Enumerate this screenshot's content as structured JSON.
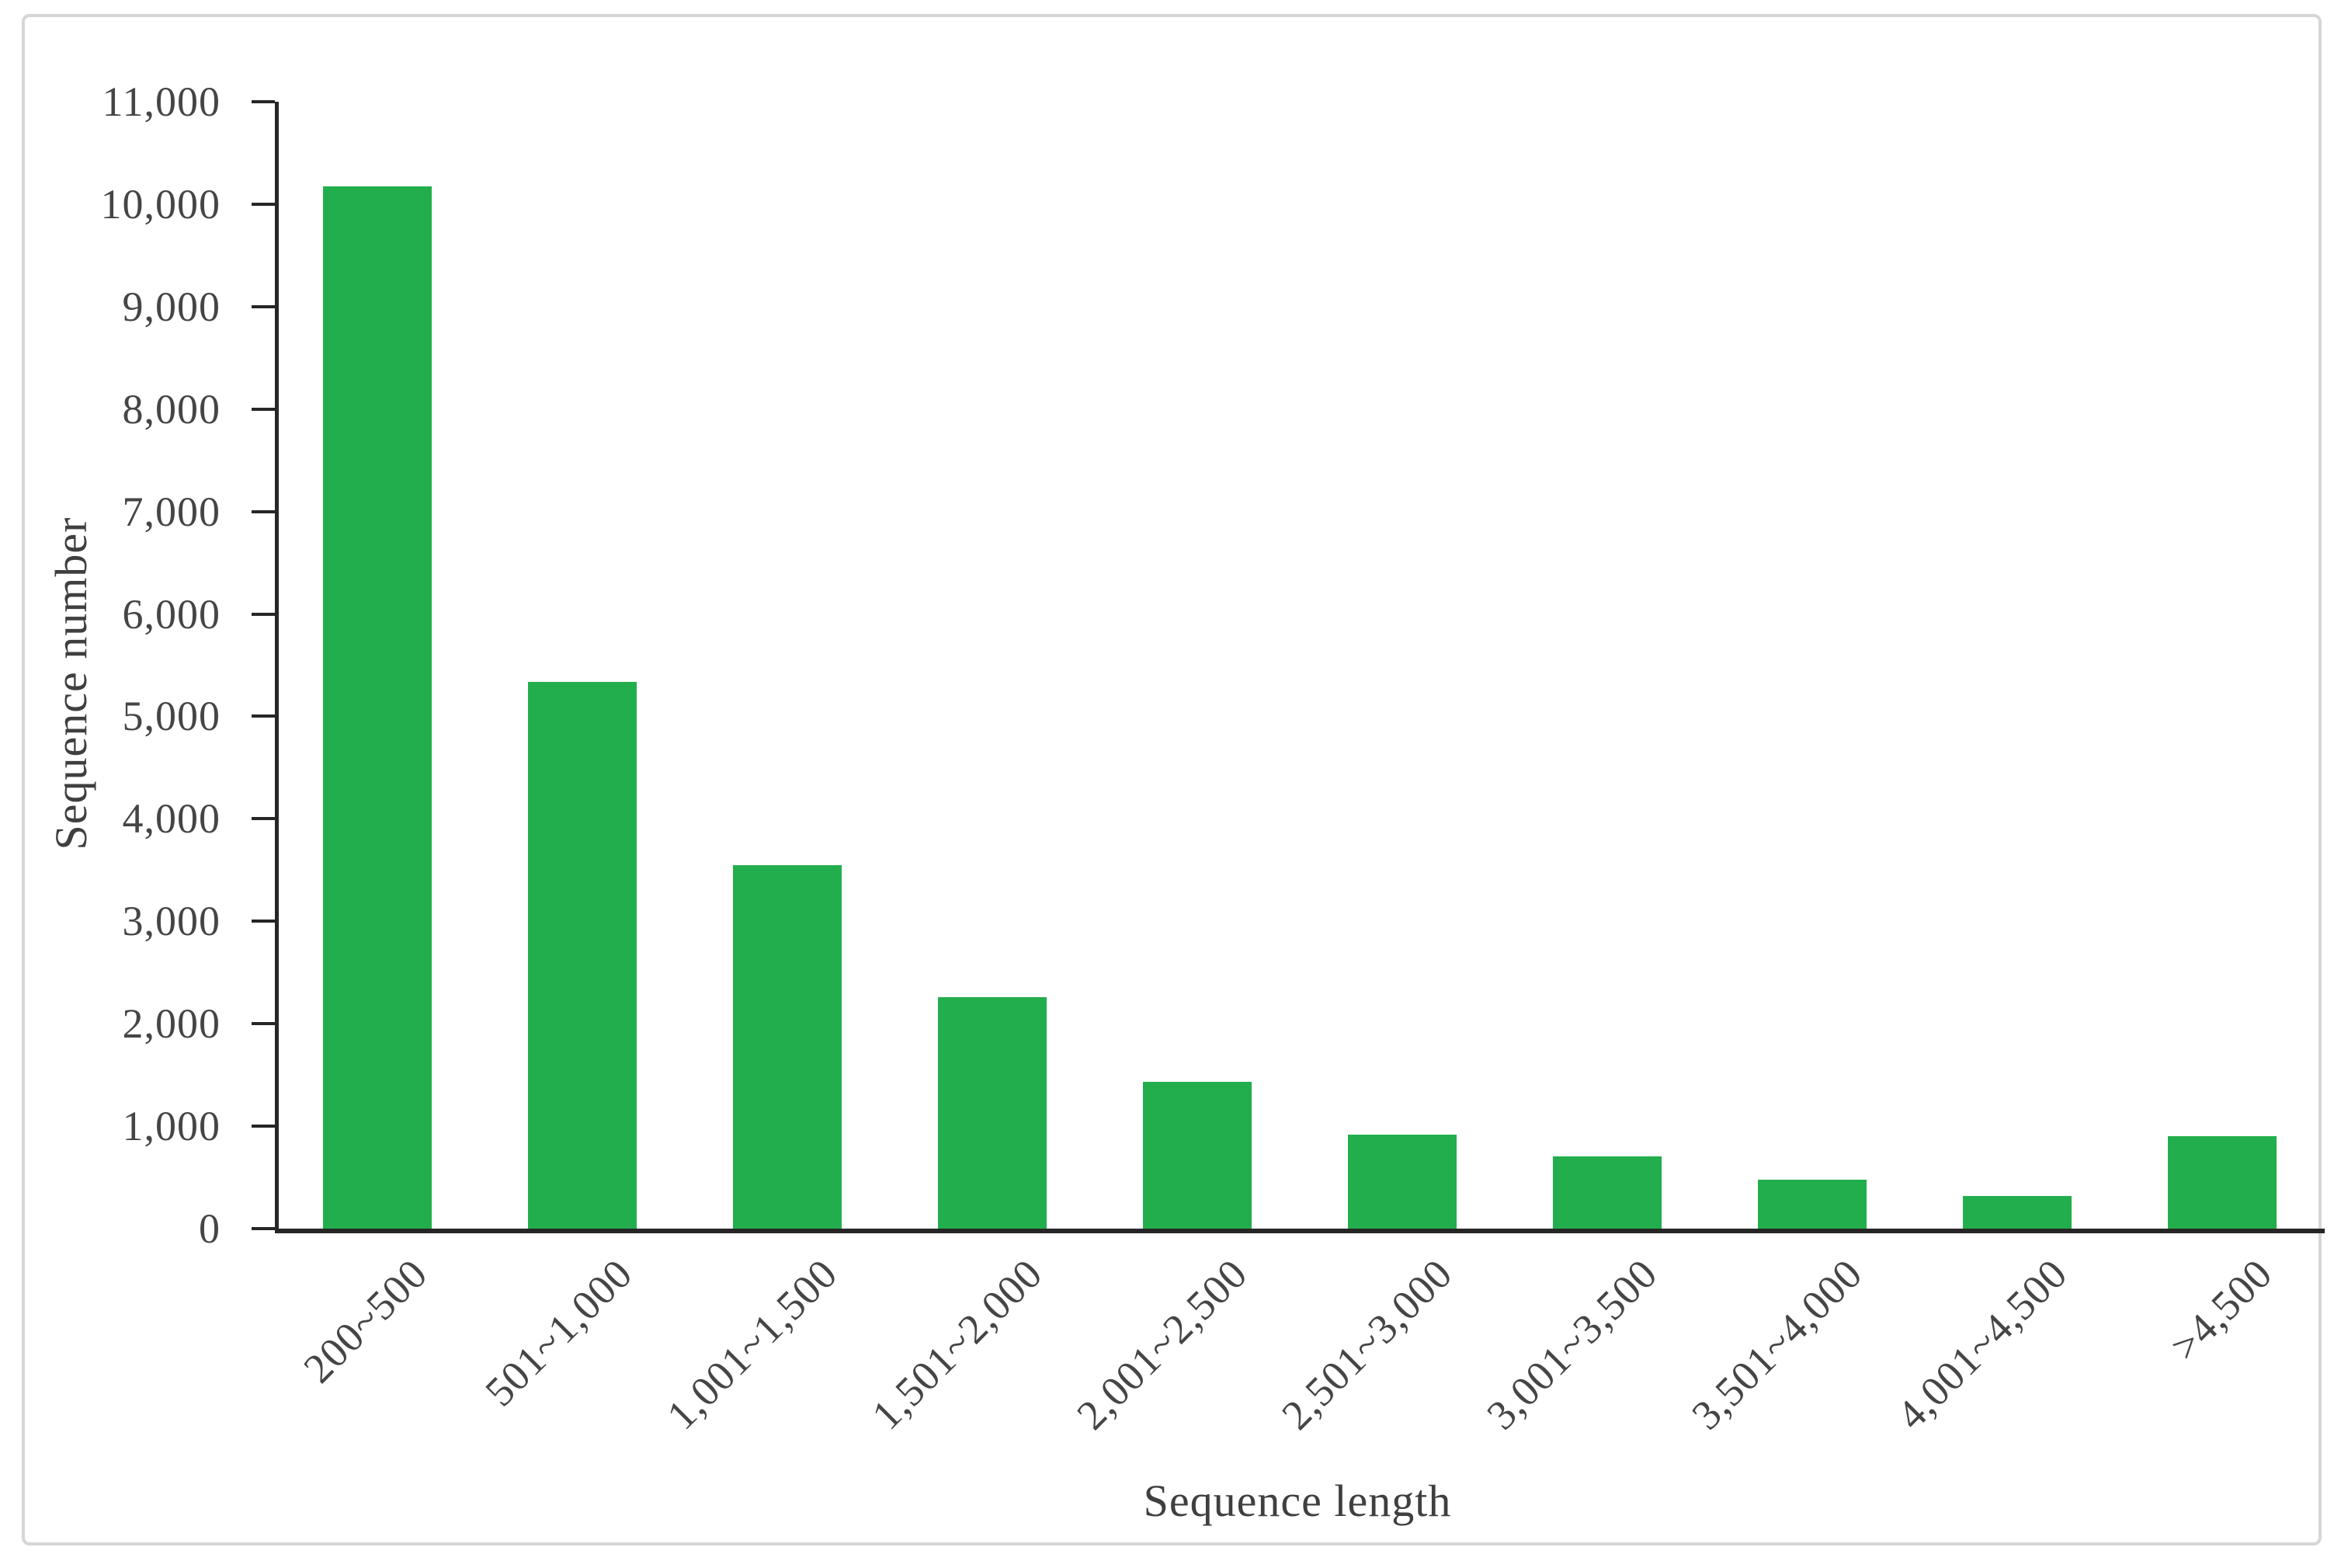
{
  "chart_data": {
    "type": "bar",
    "title": "",
    "xlabel": "Sequence length",
    "ylabel": "Sequence number",
    "categories": [
      "200~500",
      "501~1,000",
      "1,001~1,500",
      "1,501~2,000",
      "2,001~2,500",
      "2,501~3,000",
      "3,001~3,500",
      "3,501~4,000",
      "4,001~4,500",
      ">4,500"
    ],
    "values": [
      10170,
      5340,
      3550,
      2260,
      1430,
      915,
      705,
      480,
      320,
      905
    ],
    "ylim": [
      0,
      11000
    ],
    "ytick_step": 1000,
    "ytick_values": [
      0,
      1000,
      2000,
      3000,
      4000,
      5000,
      6000,
      7000,
      8000,
      9000,
      10000,
      11000
    ],
    "ytick_labels": [
      "0",
      "1,000",
      "2,000",
      "3,000",
      "4,000",
      "5,000",
      "6,000",
      "7,000",
      "8,000",
      "9,000",
      "10,000",
      "11,000"
    ],
    "bar_color": "#22ae4c",
    "axis_color": "#262626",
    "text_color": "#454545",
    "grid": false,
    "legend": null
  }
}
